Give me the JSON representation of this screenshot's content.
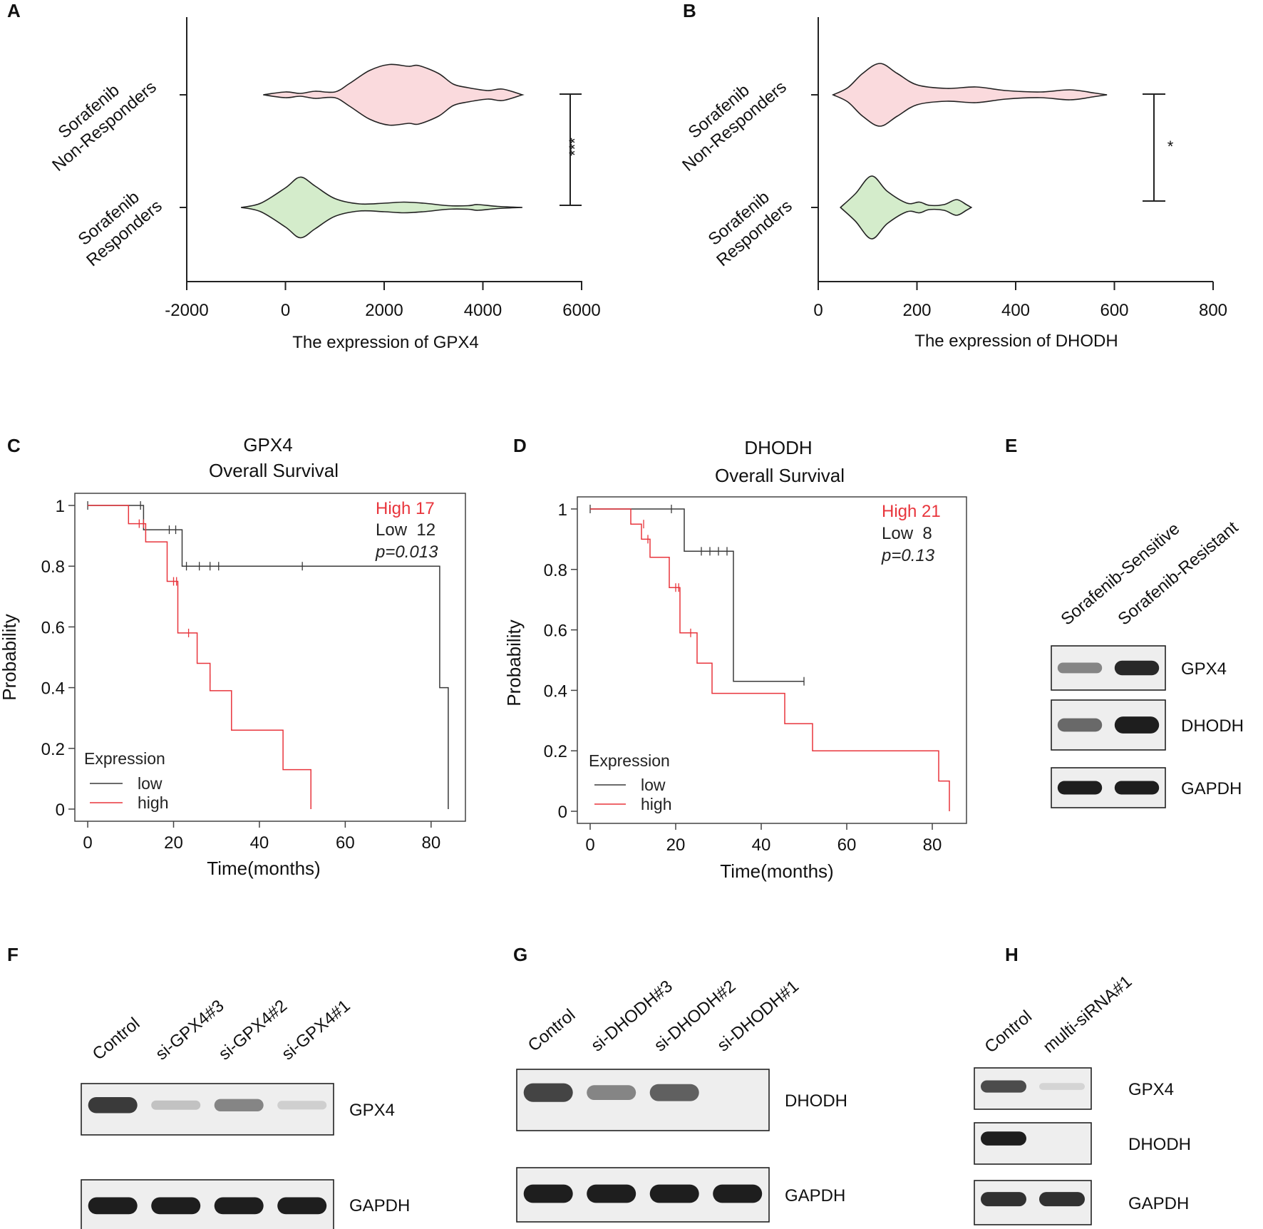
{
  "colors": {
    "high": "#e8353c",
    "low": "#3a3a3a",
    "violin_pink": "#fadadd",
    "violin_green": "#d4eccb",
    "axis": "#222222",
    "blot_bg": "#eeeeee",
    "band": "#1e1e1e"
  },
  "chart_data": [
    {
      "panel": "A",
      "type": "violin",
      "orientation": "horizontal",
      "xlabel": "The expression of GPX4",
      "xticks": [
        "-2000",
        "0",
        "2000",
        "4000",
        "6000"
      ],
      "xlim": [
        -2000,
        6000
      ],
      "groups": [
        {
          "label_line1": "Sorafenib",
          "label_line2": "Non-Responders",
          "color": "pink",
          "range": [
            -450,
            4800
          ],
          "density": [
            [
              -450,
              0
            ],
            [
              0,
              8
            ],
            [
              300,
              4
            ],
            [
              600,
              10
            ],
            [
              1000,
              8
            ],
            [
              1300,
              32
            ],
            [
              1700,
              68
            ],
            [
              2100,
              85
            ],
            [
              2500,
              80
            ],
            [
              2700,
              82
            ],
            [
              3100,
              60
            ],
            [
              3400,
              30
            ],
            [
              3700,
              20
            ],
            [
              4100,
              12
            ],
            [
              4400,
              16
            ],
            [
              4800,
              0
            ]
          ]
        },
        {
          "label_line1": "Sorafenib",
          "label_line2": "Responders",
          "color": "green",
          "range": [
            -900,
            4800
          ],
          "density": [
            [
              -900,
              0
            ],
            [
              -500,
              12
            ],
            [
              0,
              55
            ],
            [
              300,
              85
            ],
            [
              600,
              60
            ],
            [
              1000,
              25
            ],
            [
              1500,
              10
            ],
            [
              2000,
              12
            ],
            [
              2400,
              15
            ],
            [
              2800,
              12
            ],
            [
              3300,
              5
            ],
            [
              3700,
              5
            ],
            [
              3900,
              8
            ],
            [
              4300,
              3
            ],
            [
              4800,
              0
            ]
          ]
        }
      ],
      "significance": "***"
    },
    {
      "panel": "B",
      "type": "violin",
      "orientation": "horizontal",
      "xlabel": "The expression of DHODH",
      "xticks": [
        "0",
        "200",
        "400",
        "600",
        "800"
      ],
      "xlim": [
        0,
        800
      ],
      "groups": [
        {
          "label_line1": "Sorafenib",
          "label_line2": "Non-Responders",
          "color": "pink",
          "range": [
            30,
            585
          ],
          "density": [
            [
              30,
              0
            ],
            [
              60,
              20
            ],
            [
              90,
              60
            ],
            [
              125,
              88
            ],
            [
              160,
              60
            ],
            [
              200,
              28
            ],
            [
              260,
              18
            ],
            [
              320,
              22
            ],
            [
              380,
              12
            ],
            [
              450,
              8
            ],
            [
              510,
              14
            ],
            [
              560,
              5
            ],
            [
              585,
              0
            ]
          ]
        },
        {
          "label_line1": "Sorafenib",
          "label_line2": "Responders",
          "color": "green",
          "range": [
            45,
            310
          ],
          "density": [
            [
              45,
              0
            ],
            [
              75,
              38
            ],
            [
              108,
              88
            ],
            [
              140,
              45
            ],
            [
              180,
              12
            ],
            [
              205,
              15
            ],
            [
              225,
              6
            ],
            [
              255,
              8
            ],
            [
              280,
              22
            ],
            [
              300,
              8
            ],
            [
              310,
              0
            ]
          ]
        }
      ],
      "significance": "*"
    },
    {
      "panel": "C",
      "type": "line",
      "subtype": "kaplan-meier",
      "title_line1": "GPX4",
      "title_line2": "Overall Survival",
      "xlabel": "Time(months)",
      "ylabel": "Probability",
      "xlim": [
        -3,
        88
      ],
      "ylim": [
        -0.04,
        1.04
      ],
      "xticks": [
        "0",
        "20",
        "40",
        "60",
        "80"
      ],
      "yticks": [
        "0",
        "0.2",
        "0.4",
        "0.6",
        "0.8",
        "1"
      ],
      "legend_title": "Expression",
      "legend_low": "low",
      "legend_high": "high",
      "stats_high": "High 17",
      "stats_low": "Low  12",
      "stats_p": "p=0.013",
      "series": [
        {
          "name": "low",
          "steps": [
            [
              0,
              1.0
            ],
            [
              13,
              1.0
            ],
            [
              13,
              0.92
            ],
            [
              22,
              0.92
            ],
            [
              22,
              0.8
            ],
            [
              82,
              0.8
            ],
            [
              82,
              0.4
            ],
            [
              84,
              0.4
            ],
            [
              84,
              0.0
            ]
          ],
          "censors": [
            [
              0,
              1.0
            ],
            [
              12.3,
              1.0
            ],
            [
              19,
              0.92
            ],
            [
              20.5,
              0.92
            ],
            [
              23,
              0.8
            ],
            [
              26,
              0.8
            ],
            [
              28.5,
              0.8
            ],
            [
              30.5,
              0.8
            ],
            [
              50,
              0.8
            ]
          ]
        },
        {
          "name": "high",
          "steps": [
            [
              0,
              1.0
            ],
            [
              9.5,
              1.0
            ],
            [
              9.5,
              0.94
            ],
            [
              13.5,
              0.94
            ],
            [
              13.5,
              0.88
            ],
            [
              18.5,
              0.88
            ],
            [
              18.5,
              0.75
            ],
            [
              21,
              0.75
            ],
            [
              21,
              0.58
            ],
            [
              25.5,
              0.58
            ],
            [
              25.5,
              0.48
            ],
            [
              28.5,
              0.48
            ],
            [
              28.5,
              0.39
            ],
            [
              33.5,
              0.39
            ],
            [
              33.5,
              0.26
            ],
            [
              45.5,
              0.26
            ],
            [
              45.5,
              0.13
            ],
            [
              52,
              0.13
            ],
            [
              52,
              0.0
            ]
          ],
          "censors": [
            [
              12,
              0.94
            ],
            [
              13,
              0.94
            ],
            [
              20,
              0.75
            ],
            [
              20.7,
              0.75
            ],
            [
              23.5,
              0.58
            ],
            [
              28.5,
              0.43
            ]
          ]
        }
      ]
    },
    {
      "panel": "D",
      "type": "line",
      "subtype": "kaplan-meier",
      "title_line1": "DHODH",
      "title_line2": "Overall Survival",
      "xlabel": "Time(months)",
      "ylabel": "Probability",
      "xlim": [
        -3,
        88
      ],
      "ylim": [
        -0.04,
        1.04
      ],
      "xticks": [
        "0",
        "20",
        "40",
        "60",
        "80"
      ],
      "yticks": [
        "0",
        "0.2",
        "0.4",
        "0.6",
        "0.8",
        "1"
      ],
      "legend_title": "Expression",
      "legend_low": "low",
      "legend_high": "high",
      "stats_high": "High 21",
      "stats_low": "Low  8",
      "stats_p": "p=0.13",
      "series": [
        {
          "name": "low",
          "steps": [
            [
              0,
              1.0
            ],
            [
              22,
              1.0
            ],
            [
              22,
              0.86
            ],
            [
              33.5,
              0.86
            ],
            [
              33.5,
              0.43
            ],
            [
              50,
              0.43
            ]
          ],
          "censors": [
            [
              0,
              1.0
            ],
            [
              19,
              1.0
            ],
            [
              26,
              0.86
            ],
            [
              28,
              0.86
            ],
            [
              30,
              0.86
            ],
            [
              32,
              0.86
            ],
            [
              50,
              0.43
            ]
          ]
        },
        {
          "name": "high",
          "steps": [
            [
              0,
              1.0
            ],
            [
              9.5,
              1.0
            ],
            [
              9.5,
              0.95
            ],
            [
              12,
              0.95
            ],
            [
              12,
              0.9
            ],
            [
              14,
              0.9
            ],
            [
              14,
              0.84
            ],
            [
              18.5,
              0.84
            ],
            [
              18.5,
              0.74
            ],
            [
              21,
              0.74
            ],
            [
              21,
              0.59
            ],
            [
              25,
              0.59
            ],
            [
              25,
              0.49
            ],
            [
              28.5,
              0.49
            ],
            [
              28.5,
              0.39
            ],
            [
              45.5,
              0.39
            ],
            [
              45.5,
              0.29
            ],
            [
              52,
              0.29
            ],
            [
              52,
              0.2
            ],
            [
              81.5,
              0.2
            ],
            [
              81.5,
              0.1
            ],
            [
              84,
              0.1
            ],
            [
              84,
              0.0
            ]
          ],
          "censors": [
            [
              12.5,
              0.95
            ],
            [
              13.5,
              0.9
            ],
            [
              20,
              0.74
            ],
            [
              20.7,
              0.74
            ],
            [
              23.5,
              0.59
            ]
          ]
        }
      ]
    }
  ],
  "panel_letters": {
    "a": "A",
    "b": "B",
    "c": "C",
    "d": "D",
    "e": "E",
    "f": "F",
    "g": "G",
    "h": "H"
  },
  "blots": {
    "E": {
      "lanes": [
        "Sorafenib-Sensitive",
        "Sorafenib-Resistant"
      ],
      "rows": [
        {
          "label": "GPX4",
          "intensity": [
            0.45,
            0.95
          ]
        },
        {
          "label": "DHODH",
          "intensity": [
            0.6,
            1.0
          ]
        },
        {
          "label": "GAPDH",
          "intensity": [
            1.0,
            1.0
          ]
        }
      ]
    },
    "F": {
      "lanes": [
        "Control",
        "si-GPX4#3",
        "si-GPX4#2",
        "si-GPX4#1"
      ],
      "rows": [
        {
          "label": "GPX4",
          "intensity": [
            0.85,
            0.12,
            0.45,
            0.05
          ]
        },
        {
          "label": "GAPDH",
          "intensity": [
            1.0,
            1.0,
            1.0,
            1.0
          ]
        }
      ]
    },
    "G": {
      "lanes": [
        "Control",
        "si-DHODH#3",
        "si-DHODH#2",
        "si-DHODH#1"
      ],
      "rows": [
        {
          "label": "DHODH",
          "intensity": [
            0.8,
            0.45,
            0.65,
            0.0
          ]
        },
        {
          "label": "GAPDH",
          "intensity": [
            1.0,
            1.0,
            1.0,
            1.0
          ]
        }
      ]
    },
    "H": {
      "lanes": [
        "Control",
        "multi-siRNA#1"
      ],
      "rows": [
        {
          "label": "GPX4",
          "intensity": [
            0.75,
            0.03
          ]
        },
        {
          "label": "DHODH",
          "intensity": [
            1.0,
            0.0
          ]
        },
        {
          "label": "GAPDH",
          "intensity": [
            0.9,
            0.9
          ]
        }
      ]
    }
  }
}
